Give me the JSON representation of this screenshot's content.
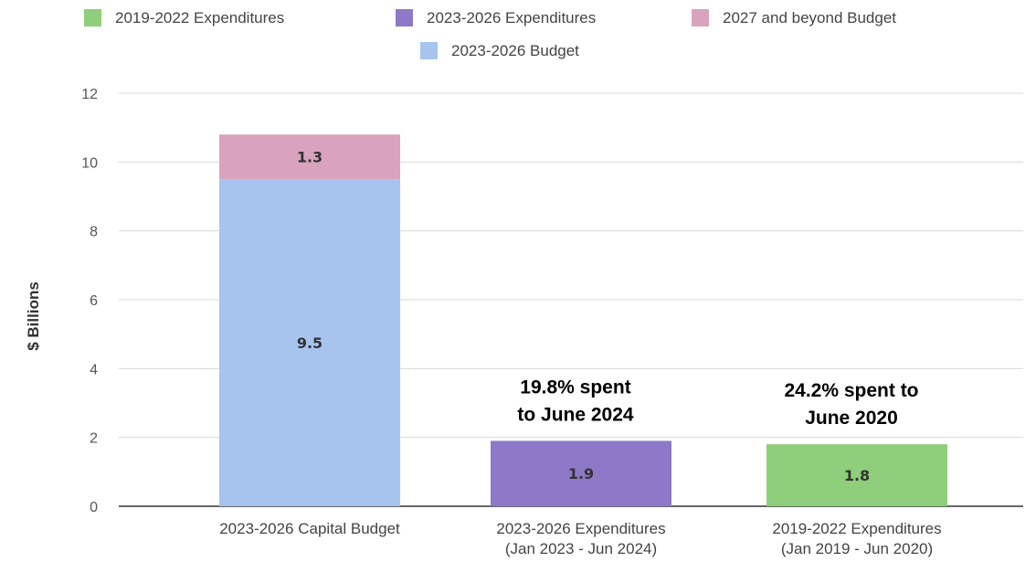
{
  "chart_data": {
    "type": "bar",
    "stacked": true,
    "ylabel": "$ Billions",
    "ylim": [
      0,
      12
    ],
    "yticks": [
      0,
      2,
      4,
      6,
      8,
      10,
      12
    ],
    "grid": true,
    "legend_position": "top",
    "categories": [
      [
        "2023-2026 Capital Budget"
      ],
      [
        "2023-2026 Expenditures",
        "(Jan 2023 - Jun 2024)"
      ],
      [
        "2019-2022 Expenditures",
        "(Jan 2019 - Jun 2020)"
      ]
    ],
    "legend": [
      {
        "name": "2019-2022 Expenditures",
        "color": "#8fce7a"
      },
      {
        "name": "2023-2026 Expenditures",
        "color": "#8d79c8"
      },
      {
        "name": "2027 and beyond Budget",
        "color": "#d9a3bd"
      },
      {
        "name": "2023-2026 Budget",
        "color": "#a6c4ee"
      }
    ],
    "series": [
      {
        "name": "2023-2026 Budget",
        "color": "#a6c4ee",
        "values": [
          9.5,
          null,
          null
        ],
        "labels": [
          "9.5",
          "",
          ""
        ]
      },
      {
        "name": "2027 and beyond Budget",
        "color": "#d9a3bd",
        "values": [
          1.3,
          null,
          null
        ],
        "labels": [
          "1.3",
          "",
          ""
        ]
      },
      {
        "name": "2023-2026 Expenditures",
        "color": "#8d79c8",
        "values": [
          null,
          1.9,
          null
        ],
        "labels": [
          "",
          "1.9",
          ""
        ]
      },
      {
        "name": "2019-2022 Expenditures",
        "color": "#8fce7a",
        "values": [
          null,
          null,
          1.8
        ],
        "labels": [
          "",
          "",
          "1.8"
        ]
      }
    ],
    "annotations": [
      {
        "category_index": 1,
        "lines": [
          "19.8% spent",
          "to June 2024"
        ]
      },
      {
        "category_index": 2,
        "lines": [
          "24.2% spent to",
          "June 2020"
        ]
      }
    ]
  }
}
